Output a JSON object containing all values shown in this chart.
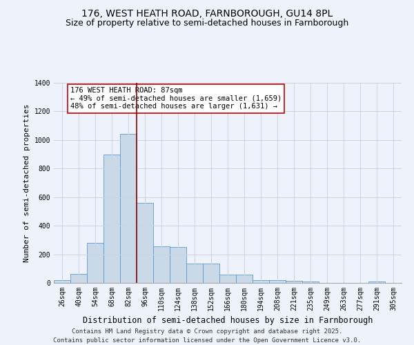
{
  "title_line1": "176, WEST HEATH ROAD, FARNBOROUGH, GU14 8PL",
  "title_line2": "Size of property relative to semi-detached houses in Farnborough",
  "xlabel": "Distribution of semi-detached houses by size in Farnborough",
  "ylabel": "Number of semi-detached properties",
  "footer_line1": "Contains HM Land Registry data © Crown copyright and database right 2025.",
  "footer_line2": "Contains public sector information licensed under the Open Government Licence v3.0.",
  "annotation_line1": "176 WEST HEATH ROAD: 87sqm",
  "annotation_line2": "← 49% of semi-detached houses are smaller (1,659)",
  "annotation_line3": "48% of semi-detached houses are larger (1,631) →",
  "bar_color": "#c9d9e8",
  "bar_edgecolor": "#5b9bd5",
  "vline_color": "#8b0000",
  "annotation_box_edgecolor": "#cc0000",
  "background_color": "#eef2fa",
  "categories": [
    "26sqm",
    "40sqm",
    "54sqm",
    "68sqm",
    "82sqm",
    "96sqm",
    "110sqm",
    "124sqm",
    "138sqm",
    "152sqm",
    "166sqm",
    "180sqm",
    "194sqm",
    "208sqm",
    "221sqm",
    "235sqm",
    "249sqm",
    "263sqm",
    "277sqm",
    "291sqm",
    "305sqm"
  ],
  "values": [
    18,
    65,
    280,
    900,
    1045,
    560,
    255,
    250,
    135,
    135,
    60,
    60,
    20,
    20,
    15,
    10,
    0,
    0,
    0,
    10,
    0
  ],
  "ylim": [
    0,
    1400
  ],
  "yticks": [
    0,
    200,
    400,
    600,
    800,
    1000,
    1200,
    1400
  ],
  "vline_x_index": 4.5,
  "grid_color": "#c8d4e8",
  "title_fontsize": 10,
  "subtitle_fontsize": 9,
  "tick_fontsize": 7,
  "ylabel_fontsize": 8,
  "xlabel_fontsize": 8.5,
  "footer_fontsize": 6.5,
  "annot_fontsize": 7.5
}
